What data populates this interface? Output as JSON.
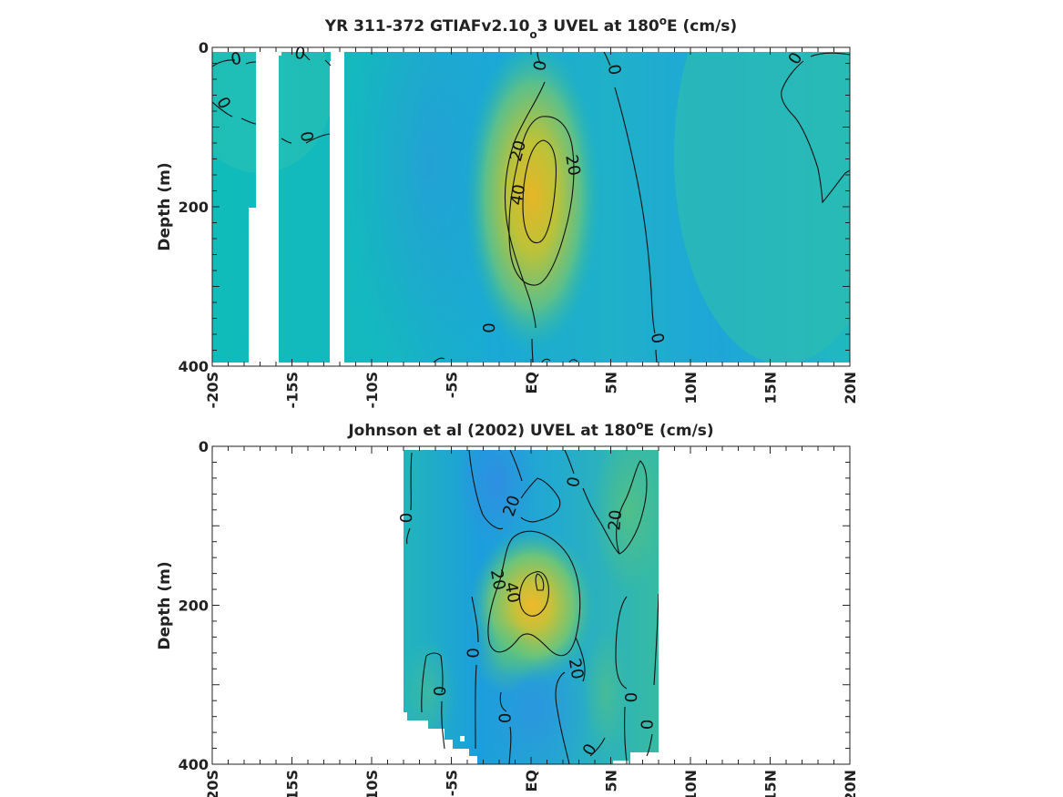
{
  "chart_data": [
    {
      "type": "heatmap",
      "title_pre": "YR 311-372 GTIAFv2.10",
      "title_sub": "o",
      "title_post": "3 UVEL at 180",
      "title_sup": "o",
      "title_end": "E (cm/s)",
      "ylabel": "Depth (m)",
      "xlim": [
        -20,
        20
      ],
      "ylim": [
        400,
        0
      ],
      "x_ticks": [
        "-20S",
        "-15S",
        "-10S",
        "-5S",
        "EQ",
        "5N",
        "10N",
        "15N",
        "20N"
      ],
      "y_ticks": [
        "0",
        "200",
        "400"
      ],
      "contour_labels": [
        {
          "text": "0",
          "x": -18.5,
          "y": 15,
          "rot": -10
        },
        {
          "text": "0",
          "x": -14.5,
          "y": 8,
          "rot": 10
        },
        {
          "text": "0",
          "x": -19.3,
          "y": 70,
          "rot": 60
        },
        {
          "text": "0",
          "x": -14.1,
          "y": 112,
          "rot": 80
        },
        {
          "text": "0",
          "x": 0.6,
          "y": 23,
          "rot": -80
        },
        {
          "text": "0",
          "x": 5.2,
          "y": 28,
          "rot": 80
        },
        {
          "text": "0",
          "x": 16.6,
          "y": 14,
          "rot": -60
        },
        {
          "text": "20",
          "x": -0.8,
          "y": 130,
          "rot": -75
        },
        {
          "text": "20",
          "x": 2.6,
          "y": 148,
          "rot": 80
        },
        {
          "text": "40",
          "x": -0.8,
          "y": 185,
          "rot": -80
        },
        {
          "text": "0",
          "x": -2.6,
          "y": 352,
          "rot": -90
        },
        {
          "text": "0",
          "x": 7.9,
          "y": 365,
          "rot": 80
        }
      ]
    },
    {
      "type": "heatmap",
      "title_pre": "Johnson et al (2002) UVEL at 180",
      "title_sup": "o",
      "title_end": "E (cm/s)",
      "ylabel": "Depth (m)",
      "xlim": [
        -20,
        20
      ],
      "ylim": [
        400,
        0
      ],
      "data_extent_x": [
        -8,
        8
      ],
      "x_ticks": [
        "-20S",
        "-15S",
        "-10S",
        "-5S",
        "EQ",
        "5N",
        "10N",
        "15N",
        "20N"
      ],
      "y_ticks": [
        "0",
        "200",
        "400"
      ],
      "contour_labels": [
        {
          "text": "0",
          "x": -7.8,
          "y": 90,
          "rot": -90
        },
        {
          "text": "20",
          "x": -1.2,
          "y": 75,
          "rot": -70
        },
        {
          "text": "0",
          "x": 2.7,
          "y": 45,
          "rot": -80
        },
        {
          "text": "20",
          "x": 5.3,
          "y": 93,
          "rot": -85
        },
        {
          "text": "20",
          "x": -2.1,
          "y": 168,
          "rot": 80
        },
        {
          "text": "40",
          "x": -1.2,
          "y": 184,
          "rot": 80
        },
        {
          "text": "0",
          "x": -3.6,
          "y": 260,
          "rot": -90
        },
        {
          "text": "20",
          "x": 2.8,
          "y": 280,
          "rot": 80
        },
        {
          "text": "0",
          "x": -5.7,
          "y": 308,
          "rot": -90
        },
        {
          "text": "0",
          "x": 6.3,
          "y": 316,
          "rot": -90
        },
        {
          "text": "0",
          "x": -1.6,
          "y": 342,
          "rot": -90
        },
        {
          "text": "0",
          "x": 7.3,
          "y": 350,
          "rot": -90
        },
        {
          "text": "0",
          "x": 3.7,
          "y": 382,
          "rot": -60
        }
      ]
    }
  ]
}
